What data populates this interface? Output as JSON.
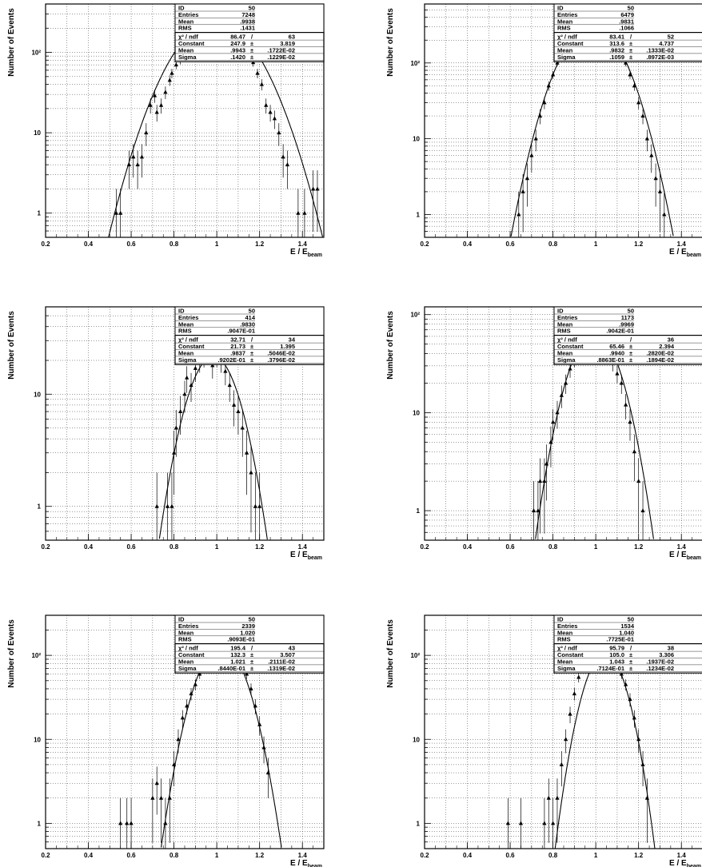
{
  "y_axis_label": "Number of Events",
  "x_axis_label": "E / E",
  "x_axis_sub": "beam",
  "chart_data": [
    {
      "type": "scatter",
      "xlim": [
        0.2,
        1.5
      ],
      "ylog": true,
      "ylim": [
        0.5,
        400
      ],
      "xticks": [
        "0.2",
        "0.4",
        "0.6",
        "0.8",
        "1",
        "1.2",
        "1.4"
      ],
      "yticks": [
        "1",
        "10",
        "10²"
      ],
      "stats": [
        {
          "label": "ID",
          "value": "50"
        },
        {
          "label": "Entries",
          "value": "7248"
        },
        {
          "label": "Mean",
          "value": ".9938"
        },
        {
          "label": "RMS",
          "value": ".1431"
        }
      ],
      "fit": [
        {
          "label": "χ² / ndf",
          "value": "86.47",
          "extra": "63",
          "sep": "/"
        },
        {
          "label": "Constant",
          "value": "247.9",
          "extra": "3.819",
          "sep": "±"
        },
        {
          "label": "Mean",
          "value": ".9943",
          "extra": ".1722E-02",
          "sep": "±"
        },
        {
          "label": "Sigma",
          "value": ".1420",
          "extra": ".1229E-02",
          "sep": "±"
        }
      ],
      "gauss": {
        "constant": 247.9,
        "mean": 0.9943,
        "sigma": 0.142
      },
      "points": [
        [
          0.53,
          1
        ],
        [
          0.55,
          1
        ],
        [
          0.59,
          4
        ],
        [
          0.61,
          5
        ],
        [
          0.63,
          4
        ],
        [
          0.65,
          5
        ],
        [
          0.67,
          10
        ],
        [
          0.69,
          22
        ],
        [
          0.71,
          29
        ],
        [
          0.72,
          18
        ],
        [
          0.74,
          22
        ],
        [
          0.76,
          32
        ],
        [
          0.78,
          45
        ],
        [
          0.79,
          55
        ],
        [
          0.81,
          70
        ],
        [
          0.83,
          80
        ],
        [
          0.85,
          105
        ],
        [
          0.87,
          120
        ],
        [
          0.89,
          150
        ],
        [
          0.91,
          185
        ],
        [
          0.93,
          200
        ],
        [
          0.95,
          220
        ],
        [
          0.97,
          235
        ],
        [
          0.99,
          250
        ],
        [
          1.01,
          240
        ],
        [
          1.03,
          225
        ],
        [
          1.05,
          215
        ],
        [
          1.07,
          200
        ],
        [
          1.09,
          185
        ],
        [
          1.11,
          150
        ],
        [
          1.13,
          120
        ],
        [
          1.15,
          95
        ],
        [
          1.17,
          75
        ],
        [
          1.19,
          55
        ],
        [
          1.21,
          40
        ],
        [
          1.23,
          22
        ],
        [
          1.25,
          18
        ],
        [
          1.27,
          15
        ],
        [
          1.29,
          10
        ],
        [
          1.31,
          5
        ],
        [
          1.33,
          4
        ],
        [
          1.38,
          1
        ],
        [
          1.41,
          1
        ],
        [
          1.45,
          2
        ],
        [
          1.47,
          2
        ]
      ]
    },
    {
      "type": "scatter",
      "xlim": [
        0.2,
        1.5
      ],
      "ylog": true,
      "ylim": [
        0.5,
        600
      ],
      "xticks": [
        "0.2",
        "0.4",
        "0.6",
        "0.8",
        "1",
        "1.2",
        "1.4"
      ],
      "yticks": [
        "1",
        "10",
        "10²"
      ],
      "stats": [
        {
          "label": "ID",
          "value": "50"
        },
        {
          "label": "Entries",
          "value": "6479"
        },
        {
          "label": "Mean",
          "value": ".9831"
        },
        {
          "label": "RMS",
          "value": ".1066"
        }
      ],
      "fit": [
        {
          "label": "χ² / ndf",
          "value": "83.41",
          "extra": "52",
          "sep": "/"
        },
        {
          "label": "Constant",
          "value": "313.6",
          "extra": "4.737",
          "sep": "±"
        },
        {
          "label": "Mean",
          "value": ".9832",
          "extra": ".1333E-02",
          "sep": "±"
        },
        {
          "label": "Sigma",
          "value": ".1059",
          "extra": ".8972E-03",
          "sep": "±"
        }
      ],
      "gauss": {
        "constant": 313.6,
        "mean": 0.9832,
        "sigma": 0.1059
      },
      "points": [
        [
          0.64,
          1
        ],
        [
          0.66,
          2
        ],
        [
          0.68,
          3
        ],
        [
          0.7,
          6
        ],
        [
          0.72,
          10
        ],
        [
          0.74,
          20
        ],
        [
          0.76,
          30
        ],
        [
          0.78,
          50
        ],
        [
          0.8,
          70
        ],
        [
          0.82,
          100
        ],
        [
          0.84,
          130
        ],
        [
          0.86,
          165
        ],
        [
          0.88,
          200
        ],
        [
          0.9,
          240
        ],
        [
          0.92,
          270
        ],
        [
          0.94,
          290
        ],
        [
          0.96,
          300
        ],
        [
          0.98,
          310
        ],
        [
          1.0,
          300
        ],
        [
          1.02,
          290
        ],
        [
          1.04,
          270
        ],
        [
          1.06,
          240
        ],
        [
          1.08,
          200
        ],
        [
          1.1,
          165
        ],
        [
          1.12,
          130
        ],
        [
          1.14,
          100
        ],
        [
          1.16,
          70
        ],
        [
          1.18,
          50
        ],
        [
          1.2,
          30
        ],
        [
          1.22,
          20
        ],
        [
          1.24,
          10
        ],
        [
          1.26,
          6
        ],
        [
          1.28,
          3
        ],
        [
          1.3,
          2
        ],
        [
          1.32,
          1
        ]
      ]
    },
    {
      "type": "scatter",
      "xlim": [
        0.2,
        1.5
      ],
      "ylog": true,
      "ylim": [
        0.5,
        60
      ],
      "xticks": [
        "0.2",
        "0.4",
        "0.6",
        "0.8",
        "1",
        "1.2",
        "1.4"
      ],
      "yticks": [
        "1",
        "10"
      ],
      "stats": [
        {
          "label": "ID",
          "value": "50"
        },
        {
          "label": "Entries",
          "value": "414"
        },
        {
          "label": "Mean",
          "value": ".9830"
        },
        {
          "label": "RMS",
          "value": ".9047E-01"
        }
      ],
      "fit": [
        {
          "label": "χ² / ndf",
          "value": "32.71",
          "extra": "34",
          "sep": "/"
        },
        {
          "label": "Constant",
          "value": "21.73",
          "extra": "1.395",
          "sep": "±"
        },
        {
          "label": "Mean",
          "value": ".9837",
          "extra": ".5046E-02",
          "sep": "±"
        },
        {
          "label": "Sigma",
          "value": ".9202E-01",
          "extra": ".3796E-02",
          "sep": "±"
        }
      ],
      "gauss": {
        "constant": 21.73,
        "mean": 0.9837,
        "sigma": 0.09202
      },
      "points": [
        [
          0.72,
          1
        ],
        [
          0.77,
          1
        ],
        [
          0.79,
          1
        ],
        [
          0.8,
          3
        ],
        [
          0.81,
          5
        ],
        [
          0.83,
          7
        ],
        [
          0.85,
          10
        ],
        [
          0.86,
          14
        ],
        [
          0.88,
          12
        ],
        [
          0.9,
          17
        ],
        [
          0.92,
          20
        ],
        [
          0.94,
          22
        ],
        [
          0.96,
          25
        ],
        [
          0.98,
          18
        ],
        [
          1.0,
          22
        ],
        [
          1.02,
          20
        ],
        [
          1.04,
          16
        ],
        [
          1.06,
          12
        ],
        [
          1.08,
          8
        ],
        [
          1.1,
          7
        ],
        [
          1.12,
          5
        ],
        [
          1.14,
          3
        ],
        [
          1.16,
          2
        ],
        [
          1.18,
          1
        ],
        [
          1.2,
          1
        ]
      ]
    },
    {
      "type": "scatter",
      "xlim": [
        0.2,
        1.5
      ],
      "ylog": true,
      "ylim": [
        0.5,
        120
      ],
      "xticks": [
        "0.2",
        "0.4",
        "0.6",
        "0.8",
        "1",
        "1.2",
        "1.4"
      ],
      "yticks": [
        "1",
        "10",
        "10²"
      ],
      "stats": [
        {
          "label": "ID",
          "value": "50"
        },
        {
          "label": "Entries",
          "value": "1173"
        },
        {
          "label": "Mean",
          "value": ".9969"
        },
        {
          "label": "RMS",
          "value": ".9042E-01"
        }
      ],
      "fit": [
        {
          "label": "χ² / ndf",
          "value": "",
          "extra": "36",
          "sep": "/"
        },
        {
          "label": "Constant",
          "value": "65.46",
          "extra": "2.394",
          "sep": "±"
        },
        {
          "label": "Mean",
          "value": ".9940",
          "extra": ".2820E-02",
          "sep": "±"
        },
        {
          "label": "Sigma",
          "value": ".8863E-01",
          "extra": ".1894E-02",
          "sep": "±"
        }
      ],
      "gauss": {
        "constant": 65.46,
        "mean": 0.994,
        "sigma": 0.08863
      },
      "points": [
        [
          0.71,
          1
        ],
        [
          0.73,
          1
        ],
        [
          0.74,
          2
        ],
        [
          0.76,
          2
        ],
        [
          0.77,
          3
        ],
        [
          0.79,
          5
        ],
        [
          0.8,
          8
        ],
        [
          0.82,
          10
        ],
        [
          0.84,
          15
        ],
        [
          0.86,
          20
        ],
        [
          0.88,
          28
        ],
        [
          0.9,
          35
        ],
        [
          0.92,
          45
        ],
        [
          0.94,
          55
        ],
        [
          0.96,
          60
        ],
        [
          0.98,
          62
        ],
        [
          1.0,
          60
        ],
        [
          1.02,
          58
        ],
        [
          1.04,
          50
        ],
        [
          1.06,
          42
        ],
        [
          1.08,
          32
        ],
        [
          1.1,
          25
        ],
        [
          1.12,
          20
        ],
        [
          1.14,
          12
        ],
        [
          1.16,
          8
        ],
        [
          1.18,
          4
        ],
        [
          1.2,
          2
        ],
        [
          1.22,
          1
        ]
      ]
    },
    {
      "type": "scatter",
      "xlim": [
        0.2,
        1.5
      ],
      "ylog": true,
      "ylim": [
        0.5,
        300
      ],
      "xticks": [
        "0.2",
        "0.4",
        "0.6",
        "0.8",
        "1",
        "1.2",
        "1.4"
      ],
      "yticks": [
        "1",
        "10",
        "10²"
      ],
      "stats": [
        {
          "label": "ID",
          "value": "50"
        },
        {
          "label": "Entries",
          "value": "2339"
        },
        {
          "label": "Mean",
          "value": "1.020"
        },
        {
          "label": "RMS",
          "value": ".9093E-01"
        }
      ],
      "fit": [
        {
          "label": "χ² / ndf",
          "value": "195.4",
          "extra": "43",
          "sep": "/"
        },
        {
          "label": "Constant",
          "value": "132.3",
          "extra": "3.507",
          "sep": "±"
        },
        {
          "label": "Mean",
          "value": "1.021",
          "extra": ".2111E-02",
          "sep": "±"
        },
        {
          "label": "Sigma",
          "value": ".8440E-01",
          "extra": ".1319E-02",
          "sep": "±"
        }
      ],
      "gauss": {
        "constant": 132.3,
        "mean": 1.021,
        "sigma": 0.0844
      },
      "points": [
        [
          0.55,
          1
        ],
        [
          0.58,
          1
        ],
        [
          0.6,
          1
        ],
        [
          0.7,
          2
        ],
        [
          0.72,
          3
        ],
        [
          0.74,
          2
        ],
        [
          0.76,
          1
        ],
        [
          0.78,
          2
        ],
        [
          0.8,
          5
        ],
        [
          0.82,
          10
        ],
        [
          0.84,
          18
        ],
        [
          0.86,
          25
        ],
        [
          0.88,
          35
        ],
        [
          0.9,
          45
        ],
        [
          0.92,
          60
        ],
        [
          0.94,
          80
        ],
        [
          0.96,
          100
        ],
        [
          0.98,
          115
        ],
        [
          1.0,
          125
        ],
        [
          1.02,
          130
        ],
        [
          1.04,
          128
        ],
        [
          1.06,
          120
        ],
        [
          1.08,
          110
        ],
        [
          1.1,
          95
        ],
        [
          1.12,
          80
        ],
        [
          1.14,
          60
        ],
        [
          1.16,
          40
        ],
        [
          1.18,
          25
        ],
        [
          1.2,
          15
        ],
        [
          1.22,
          8
        ],
        [
          1.24,
          4
        ]
      ]
    },
    {
      "type": "scatter",
      "xlim": [
        0.2,
        1.5
      ],
      "ylog": true,
      "ylim": [
        0.5,
        300
      ],
      "xticks": [
        "0.2",
        "0.4",
        "0.6",
        "0.8",
        "1",
        "1.2",
        "1.4"
      ],
      "yticks": [
        "1",
        "10",
        "10²"
      ],
      "stats": [
        {
          "label": "ID",
          "value": "50"
        },
        {
          "label": "Entries",
          "value": "1534"
        },
        {
          "label": "Mean",
          "value": "1.040"
        },
        {
          "label": "RMS",
          "value": ".7725E-01"
        }
      ],
      "fit": [
        {
          "label": "χ² / ndf",
          "value": "95.79",
          "extra": "38",
          "sep": "/"
        },
        {
          "label": "Constant",
          "value": "105.0",
          "extra": "3.306",
          "sep": "±"
        },
        {
          "label": "Mean",
          "value": "1.043",
          "extra": ".1937E-02",
          "sep": "±"
        },
        {
          "label": "Sigma",
          "value": ".7124E-01",
          "extra": ".1234E-02",
          "sep": "±"
        }
      ],
      "gauss": {
        "constant": 105.0,
        "mean": 1.043,
        "sigma": 0.07124
      },
      "points": [
        [
          0.59,
          1
        ],
        [
          0.65,
          1
        ],
        [
          0.76,
          1
        ],
        [
          0.78,
          2
        ],
        [
          0.8,
          1
        ],
        [
          0.82,
          2
        ],
        [
          0.84,
          5
        ],
        [
          0.86,
          10
        ],
        [
          0.88,
          20
        ],
        [
          0.9,
          35
        ],
        [
          0.92,
          55
        ],
        [
          0.94,
          75
        ],
        [
          0.96,
          90
        ],
        [
          0.98,
          100
        ],
        [
          1.0,
          105
        ],
        [
          1.02,
          102
        ],
        [
          1.04,
          98
        ],
        [
          1.06,
          92
        ],
        [
          1.08,
          85
        ],
        [
          1.1,
          75
        ],
        [
          1.12,
          60
        ],
        [
          1.14,
          45
        ],
        [
          1.16,
          30
        ],
        [
          1.18,
          18
        ],
        [
          1.2,
          10
        ],
        [
          1.22,
          5
        ],
        [
          1.24,
          2
        ]
      ]
    }
  ]
}
